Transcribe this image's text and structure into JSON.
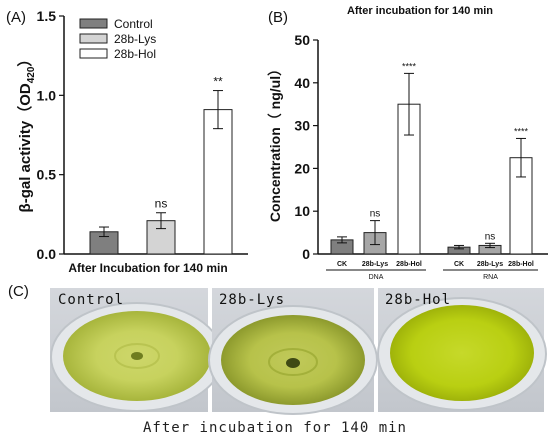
{
  "chart_data": [
    {
      "panel": "(A)",
      "type": "bar",
      "title": "",
      "xlabel": "After Incubation for 140 min",
      "ylabel": "β-gal activity（OD",
      "ylabel_sub": "420",
      "ylabel_end": "）",
      "ylim": [
        0,
        1.5
      ],
      "yticks": [
        "0.0",
        "0.5",
        "1.0",
        "1.5"
      ],
      "legend_position": "top-left",
      "series": [
        {
          "name": "Control",
          "value": 0.14,
          "error": 0.03,
          "sig": "",
          "color": "#7f7f7f"
        },
        {
          "name": "28b-Lys",
          "value": 0.21,
          "error": 0.05,
          "sig": "ns",
          "color": "#d4d4d4"
        },
        {
          "name": "28b-Hol",
          "value": 0.91,
          "error": 0.12,
          "sig": "**",
          "color": "#ffffff"
        }
      ]
    },
    {
      "panel": "(B)",
      "type": "bar",
      "title": "After incubation for 140 min",
      "xlabel": "",
      "ylabel": "Concentration（ ng/ul）",
      "ylim": [
        0,
        50
      ],
      "yticks": [
        "0",
        "10",
        "20",
        "30",
        "40",
        "50"
      ],
      "groups": [
        {
          "name": "DNA",
          "bars": [
            {
              "category": "CK",
              "value": 3.3,
              "error": 0.7,
              "sig": "",
              "color": "#7f7f7f"
            },
            {
              "category": "28b-Lys",
              "value": 5.0,
              "error": 2.8,
              "sig": "ns",
              "color": "#a6a6a6"
            },
            {
              "category": "28b-Hol",
              "value": 35.0,
              "error": 7.2,
              "sig": "****",
              "color": "#ffffff"
            }
          ]
        },
        {
          "name": "RNA",
          "bars": [
            {
              "category": "CK",
              "value": 1.6,
              "error": 0.4,
              "sig": "",
              "color": "#7f7f7f"
            },
            {
              "category": "28b-Lys",
              "value": 2.0,
              "error": 0.5,
              "sig": "ns",
              "color": "#a6a6a6"
            },
            {
              "category": "28b-Hol",
              "value": 22.5,
              "error": 4.5,
              "sig": "****",
              "color": "#ffffff"
            }
          ]
        }
      ]
    }
  ],
  "panel_c": {
    "label": "(C)",
    "photos": [
      "Control",
      "28b-Lys",
      "28b-Hol"
    ],
    "caption": "After incubation for 140 min"
  }
}
